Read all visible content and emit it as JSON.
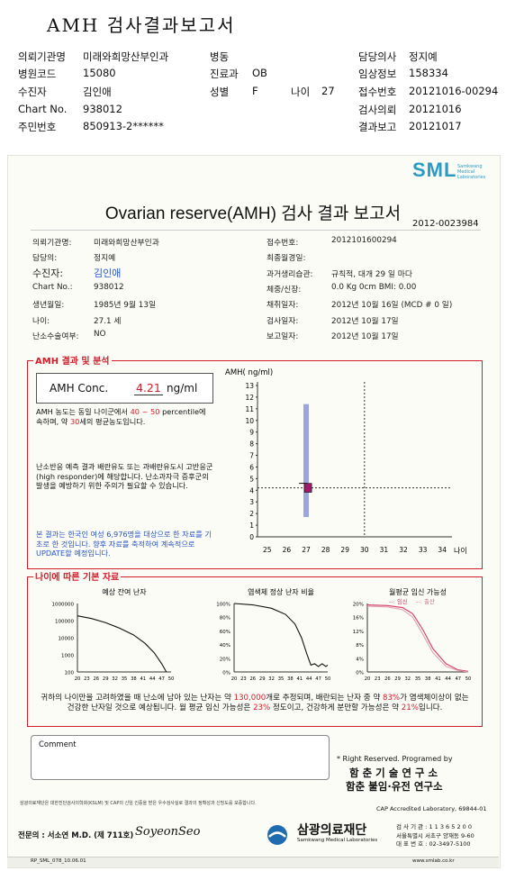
{
  "header": {
    "title": "AMH 검사결과보고서",
    "rows": [
      [
        {
          "k": "의뢰기관명",
          "v": "미래와희망산부인과"
        },
        {
          "k": "병동",
          "v": ""
        },
        {
          "k": "담당의사",
          "v": "정지예"
        }
      ],
      [
        {
          "k": "병원코드",
          "v": "15080"
        },
        {
          "k": "진료과",
          "v": "OB"
        },
        {
          "k": "임상정보",
          "v": "158334"
        }
      ],
      [
        {
          "k": "수진자",
          "v": "김인애"
        },
        {
          "k": "성별",
          "v": "F"
        },
        {
          "k": "접수번호",
          "v": "20121016-00294"
        }
      ],
      [
        {
          "k": "Chart No.",
          "v": "938012"
        },
        {
          "k": "",
          "v": ""
        },
        {
          "k": "검사의뢰",
          "v": "20121016"
        }
      ],
      [
        {
          "k": "주민번호",
          "v": "850913-2******"
        },
        {
          "k": "",
          "v": ""
        },
        {
          "k": "결과보고",
          "v": "20121017"
        }
      ]
    ],
    "age_label": "나이",
    "age_value": "27"
  },
  "report": {
    "logo": "SML",
    "logo_sub": "Samkwang Medical Laboratories",
    "title": "Ovarian reserve(AMH) 검사 결과 보고서",
    "doc_no": "2012-0023984",
    "left_info": [
      {
        "k": "의뢰기관명:",
        "v": "미래와희망산부인과"
      },
      {
        "k": "담당의:",
        "v": "정지예"
      },
      {
        "k": "수진자:",
        "v": "김인애"
      },
      {
        "k": "Chart No.:",
        "v": "938012"
      },
      {
        "k": "생년월일:",
        "v": "1985년 9월 13일"
      },
      {
        "k": "나이:",
        "v": "27.1 세"
      },
      {
        "k": "난소수술여부:",
        "v": "NO"
      }
    ],
    "right_info": [
      {
        "k": "접수번호:",
        "v": "2012101600294"
      },
      {
        "k": "최종월경일:",
        "v": ""
      },
      {
        "k": "과거생리습관:",
        "v": "규칙적, 대개  29 일 마다"
      },
      {
        "k": "체중/신장:",
        "v": "0.0 Kg        0cm    BMI:     0.00"
      },
      {
        "k": "채취일자:",
        "v": "2012년 10월 16일 (MCD # 0 일)"
      },
      {
        "k": "검사일자:",
        "v": "2012년 10월 17일"
      },
      {
        "k": "보고일자:",
        "v": "2012년 10월 17일"
      }
    ]
  },
  "amh_section": {
    "title": "AMH 결과 및 분석",
    "conc_label": "AMH Conc.",
    "conc_value": "4.21",
    "conc_unit": "ng/ml",
    "p1": [
      "AMH 농도는 동일 나이군에서 ",
      "40 ~ 50",
      " percentile에 속하며, 약 ",
      "30",
      "세의 평균농도입니다."
    ],
    "p2": "난소반응 예측 결과 배란유도 또는 과배란유도시 고반응군 (high responder)에 해당합니다. 난소과자극 증후군의 발생을 예방하기 위한 주의가 필요할 수 있습니다.",
    "p3": "본 결과는 한국인 여성 6,976명을 대상으로 한 자료를 기초로 한 것입니다. 향후 자료를 축적하여 계속적으로 UPDATE할 예정입니다."
  },
  "chart_data": [
    {
      "type": "scatter",
      "ylabel": "AMH( ng/ml)",
      "xlabel": "나이",
      "x_ticks": [
        25,
        26,
        27,
        28,
        29,
        30,
        31,
        32,
        33,
        34
      ],
      "y_ticks": [
        0,
        1,
        2,
        3,
        4,
        5,
        6,
        7,
        8,
        9,
        10,
        11,
        12,
        13
      ],
      "ylim": [
        0,
        13
      ],
      "xlim": [
        24.5,
        34.5
      ],
      "range_bar": {
        "x": 27,
        "low": 1.7,
        "high": 11.4
      },
      "point": {
        "x": 27.1,
        "y": 4.21
      },
      "crosshair": {
        "x": 30,
        "y": 4.21
      },
      "colors": {
        "bar": "#9aa6dc",
        "point": "#a0186a"
      }
    },
    {
      "type": "line",
      "title": "예상 잔여 난자",
      "y_ticks": [
        "1000000",
        "100000",
        "10000",
        "1000",
        "100"
      ],
      "x_ticks": [
        "20",
        "23",
        "26",
        "29",
        "32",
        "35",
        "38",
        "41",
        "44",
        "47",
        "50"
      ]
    },
    {
      "type": "line",
      "title": "염색체 정상 난자 비율",
      "y_ticks": [
        "100%",
        "80%",
        "60%",
        "40%",
        "20%",
        "0%"
      ],
      "x_ticks": [
        "20",
        "23",
        "26",
        "29",
        "32",
        "35",
        "38",
        "41",
        "44",
        "47",
        "50"
      ]
    },
    {
      "type": "line",
      "title": "월평균 임신 가능성",
      "legend": [
        "임신",
        "출산"
      ],
      "y_ticks": [
        "20%",
        "16%",
        "12%",
        "8%",
        "4%",
        "0%"
      ],
      "x_ticks": [
        "20",
        "23",
        "26",
        "29",
        "32",
        "35",
        "38",
        "41",
        "44",
        "47",
        "50"
      ]
    }
  ],
  "age_section": {
    "title": "나이에 따른 기본 자료",
    "summary_parts": [
      "귀하의 나이만을 고려하였을 때 난소에 남아 있는 난자는 약  ",
      "130,000",
      "개로 추정되며, 배란되는 난자 중 약 ",
      "83%",
      "가 염색체이상이 없는 건강한 난자일 것으로 예상됩니다. 월 평균 임신 가능성은 ",
      "23%",
      " 정도이고, 건강하게 분만할 가능성은 약 ",
      "21%",
      "입니다."
    ]
  },
  "footer": {
    "comment_label": "Comment",
    "rights": "* Right Reserved. Programed by",
    "org1": "함 춘  기 술  연 구 소",
    "org2": "함춘 불임·유전 연구소",
    "cert_text": "삼광의료재단은 대한진단검사의학회(KSLM) 및 CAP의 신임 인증을 받은 우수검사실로 결과의 정확성과 신빙도를 보증합니다.",
    "cap": "CAP  Accredited  Laboratory,  69844-01",
    "specialist": "전문의 : 서소연 M.D. (제 711호)",
    "signature": "SoyeonSeo",
    "foundation": "삼광의료재단",
    "foundation_en": "Samkwang Medical Laboratories",
    "lic": "검 사 기 관 : 1 1 3 6 5 2 0 0",
    "addr": "서울특별시 서초구 양재동 9-60",
    "phone": "대 표 번 호 : 02-3497-5100",
    "form_code": "RP_SML_078_10.06.01",
    "web": "www.smlab.co.kr"
  }
}
